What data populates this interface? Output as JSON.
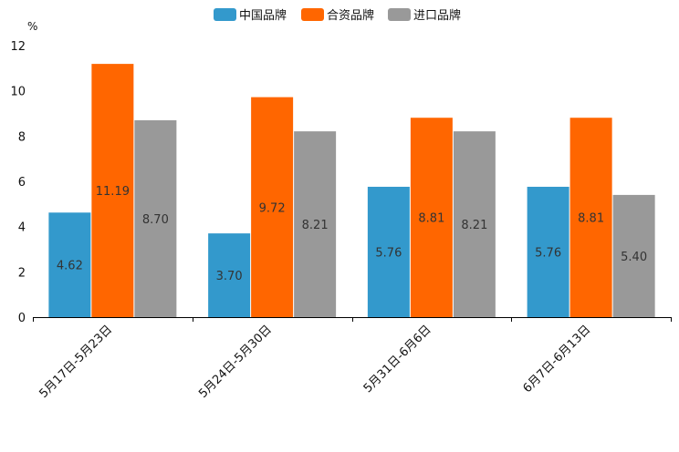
{
  "chart_data": {
    "type": "bar",
    "title": "",
    "ylabel": "%",
    "xlabel": "",
    "ylim": [
      0,
      12
    ],
    "yticks": [
      0,
      2,
      4,
      6,
      8,
      10,
      12
    ],
    "categories": [
      "5月17日-5月23日",
      "5月24日-5月30日",
      "5月31日-6月6日",
      "6月7日-6月13日"
    ],
    "series": [
      {
        "name": "中国品牌",
        "color": "#3399cc",
        "values": [
          4.62,
          3.7,
          5.76,
          5.76
        ]
      },
      {
        "name": "合资品牌",
        "color": "#ff6600",
        "values": [
          11.19,
          9.72,
          8.81,
          8.81
        ]
      },
      {
        "name": "进口品牌",
        "color": "#999999",
        "values": [
          8.7,
          8.21,
          8.21,
          5.4
        ]
      }
    ],
    "legend_position": "top-center",
    "grid": false
  }
}
